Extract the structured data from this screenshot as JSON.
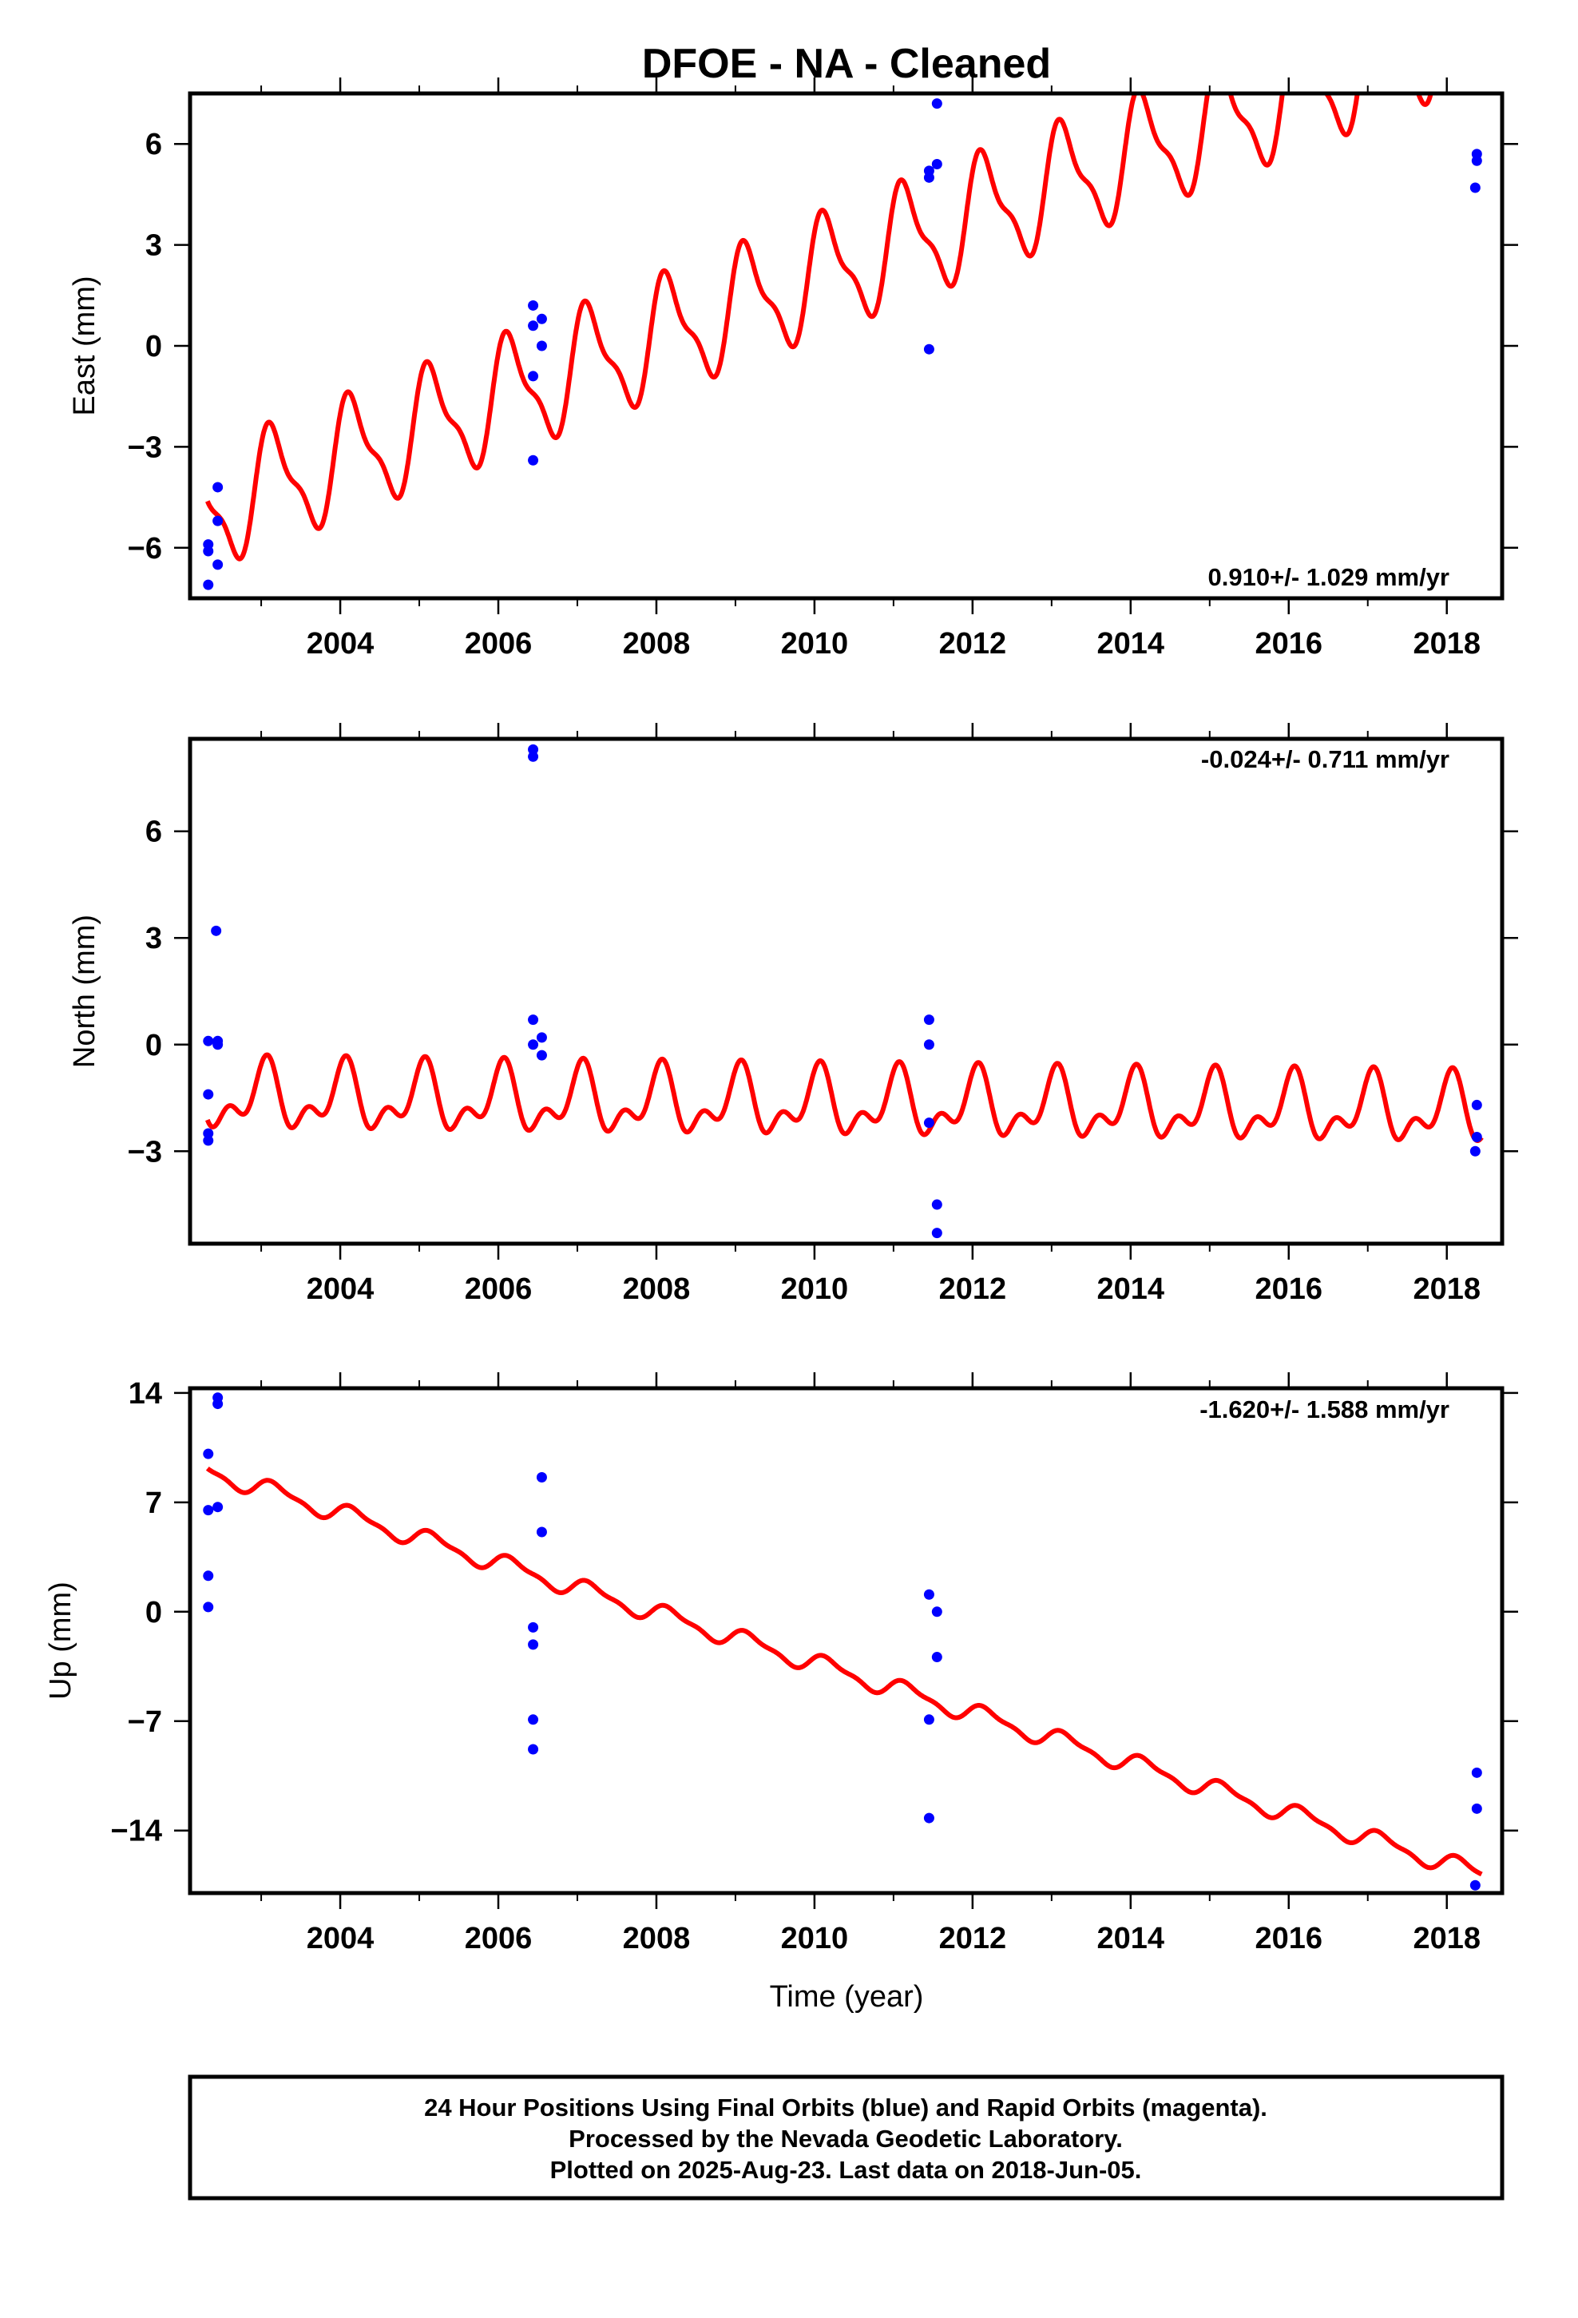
{
  "title": "DFOE  - NA - Cleaned",
  "xlabel": "Time (year)",
  "footer": {
    "line1": "24 Hour Positions Using Final Orbits (blue) and Rapid Orbits (magenta).",
    "line2": "Processed by the Nevada Geodetic Laboratory.",
    "line3": "Plotted on 2025-Aug-23. Last data on 2018-Jun-05."
  },
  "colors": {
    "model": "#ff0000",
    "final_orbits": "#0000ff",
    "axes": "#000000"
  },
  "chart_data": [
    {
      "type": "scatter",
      "component": "east",
      "ylabel": "East (mm)",
      "rate": "0.910+/- 1.029 mm/yr",
      "xlim": [
        2002.1,
        2018.7
      ],
      "ylim": [
        -7.5,
        7.5
      ],
      "xticks": [
        2004,
        2006,
        2008,
        2010,
        2012,
        2014,
        2016,
        2018
      ],
      "yticks": [
        -6,
        -3,
        0,
        3,
        6
      ],
      "yticklabels": [
        "−6",
        "−3",
        "0",
        "3",
        "6"
      ],
      "model": {
        "start": 2002.32,
        "end": 2018.44,
        "y0": -4.9,
        "slope": 0.9,
        "step_at": 2006.55,
        "step": 0,
        "ampA": 1.6,
        "phiA": 0.6,
        "ampS": 0.55,
        "phiS": 1.0
      },
      "points": [
        {
          "x": 2002.33,
          "y": -5.9
        },
        {
          "x": 2002.33,
          "y": -6.1
        },
        {
          "x": 2002.33,
          "y": -7.1
        },
        {
          "x": 2002.45,
          "y": -4.2
        },
        {
          "x": 2002.45,
          "y": -5.2
        },
        {
          "x": 2002.45,
          "y": -6.5
        },
        {
          "x": 2006.44,
          "y": 1.2
        },
        {
          "x": 2006.44,
          "y": 0.6
        },
        {
          "x": 2006.44,
          "y": -0.9
        },
        {
          "x": 2006.44,
          "y": -3.4
        },
        {
          "x": 2006.55,
          "y": 0.8
        },
        {
          "x": 2006.55,
          "y": 0.0
        },
        {
          "x": 2011.45,
          "y": 5.2
        },
        {
          "x": 2011.45,
          "y": 5.0
        },
        {
          "x": 2011.45,
          "y": -0.1
        },
        {
          "x": 2011.55,
          "y": 7.2
        },
        {
          "x": 2011.55,
          "y": 5.4
        },
        {
          "x": 2018.38,
          "y": 5.7
        },
        {
          "x": 2018.38,
          "y": 5.5
        },
        {
          "x": 2018.36,
          "y": 4.7
        }
      ]
    },
    {
      "type": "scatter",
      "component": "north",
      "ylabel": "North (mm)",
      "rate": "-0.024+/- 0.711 mm/yr",
      "xlim": [
        2002.1,
        2018.7
      ],
      "ylim": [
        -5.6,
        8.6
      ],
      "xticks": [
        2004,
        2006,
        2008,
        2010,
        2012,
        2014,
        2016,
        2018
      ],
      "yticks": [
        -3,
        0,
        3,
        6
      ],
      "yticklabels": [
        "−3",
        "0",
        "3",
        "6"
      ],
      "model": {
        "start": 2002.32,
        "end": 2018.44,
        "y0": -1.5,
        "slope": -0.024,
        "step_at": 2006.55,
        "step": 0,
        "ampA": 0.75,
        "phiA": 1.3,
        "ampS": 0.5,
        "phiS": 0.5
      },
      "points": [
        {
          "x": 2002.33,
          "y": 0.1
        },
        {
          "x": 2002.33,
          "y": -1.4
        },
        {
          "x": 2002.33,
          "y": -2.5
        },
        {
          "x": 2002.33,
          "y": -2.7
        },
        {
          "x": 2002.43,
          "y": 3.2
        },
        {
          "x": 2002.45,
          "y": 0.1
        },
        {
          "x": 2002.45,
          "y": 0.0
        },
        {
          "x": 2006.44,
          "y": 8.3
        },
        {
          "x": 2006.44,
          "y": 8.1
        },
        {
          "x": 2006.44,
          "y": 0.7
        },
        {
          "x": 2006.44,
          "y": 0.0
        },
        {
          "x": 2006.55,
          "y": 0.2
        },
        {
          "x": 2006.55,
          "y": -0.3
        },
        {
          "x": 2011.45,
          "y": 0.7
        },
        {
          "x": 2011.45,
          "y": 0.0
        },
        {
          "x": 2011.45,
          "y": -2.2
        },
        {
          "x": 2011.55,
          "y": -4.5
        },
        {
          "x": 2011.55,
          "y": -5.3
        },
        {
          "x": 2018.38,
          "y": -1.7
        },
        {
          "x": 2018.38,
          "y": -2.6
        },
        {
          "x": 2018.36,
          "y": -3.0
        }
      ]
    },
    {
      "type": "scatter",
      "component": "up",
      "ylabel": "Up (mm)",
      "rate": "-1.620+/- 1.588 mm/yr",
      "xlim": [
        2002.1,
        2018.7
      ],
      "ylim": [
        -18,
        14.3
      ],
      "xticks": [
        2004,
        2006,
        2008,
        2010,
        2012,
        2014,
        2016,
        2018
      ],
      "yticks": [
        -14,
        -7,
        0,
        7,
        14
      ],
      "yticklabels": [
        "−14",
        "−7",
        "0",
        "7",
        "14"
      ],
      "model": {
        "start": 2002.32,
        "end": 2018.44,
        "y0": 9.0,
        "slope": -1.6,
        "step_at": 2006.55,
        "step": 0,
        "ampA": 0.55,
        "phiA": 0.4,
        "ampS": 0.2,
        "phiS": 0.8
      },
      "points": [
        {
          "x": 2002.33,
          "y": 10.1
        },
        {
          "x": 2002.33,
          "y": 6.5
        },
        {
          "x": 2002.33,
          "y": 2.3
        },
        {
          "x": 2002.33,
          "y": 0.3
        },
        {
          "x": 2002.45,
          "y": 13.7
        },
        {
          "x": 2002.45,
          "y": 13.3
        },
        {
          "x": 2002.45,
          "y": 6.7
        },
        {
          "x": 2006.44,
          "y": -1.0
        },
        {
          "x": 2006.44,
          "y": -2.1
        },
        {
          "x": 2006.44,
          "y": -6.9
        },
        {
          "x": 2006.44,
          "y": -8.8
        },
        {
          "x": 2006.55,
          "y": 8.6
        },
        {
          "x": 2006.55,
          "y": 5.1
        },
        {
          "x": 2011.45,
          "y": 1.1
        },
        {
          "x": 2011.45,
          "y": -6.9
        },
        {
          "x": 2011.45,
          "y": -13.2
        },
        {
          "x": 2011.55,
          "y": 0.0
        },
        {
          "x": 2011.55,
          "y": -2.9
        },
        {
          "x": 2018.38,
          "y": -10.3
        },
        {
          "x": 2018.38,
          "y": -12.6
        },
        {
          "x": 2018.36,
          "y": -17.5
        }
      ]
    }
  ]
}
